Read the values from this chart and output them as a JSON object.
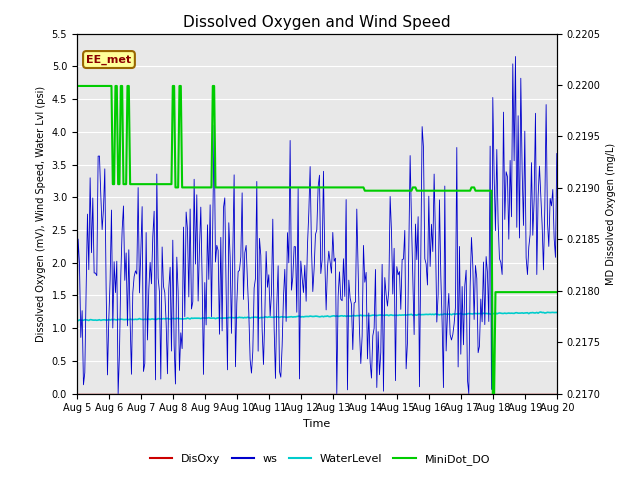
{
  "title": "Dissolved Oxygen and Wind Speed",
  "xlabel": "Time",
  "ylabel_left": "Dissolved Oxygen (mV), Wind Speed, Water Lvl (psi)",
  "ylabel_right": "MD Dissolved Oxygen (mg/L)",
  "ylim_left": [
    0.0,
    5.5
  ],
  "ylim_right": [
    0.217,
    0.2205
  ],
  "annotation_text": "EE_met",
  "background_color": "#ffffff",
  "plot_bg_color": "#e8e8e8",
  "legend_items": [
    "DisOxy",
    "ws",
    "WaterLevel",
    "MiniDot_DO"
  ],
  "legend_colors": [
    "#cc0000",
    "#0000cc",
    "#00cccc",
    "#00cc00"
  ]
}
